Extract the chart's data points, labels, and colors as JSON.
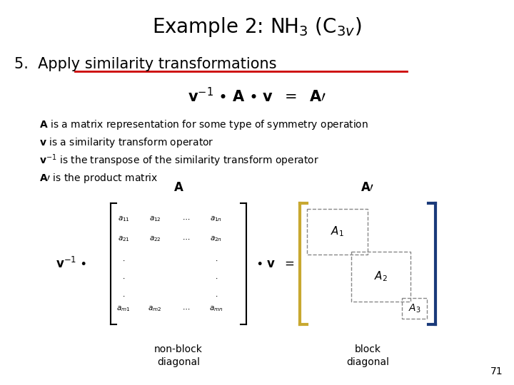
{
  "title": "Example 2: NH$_3$ (C$_{3v}$)",
  "background_color": "#ffffff",
  "title_fontsize": 20,
  "step5_text": "5.  Apply similarity transformations",
  "step5_fontsize": 15,
  "equation_fontsize": 13,
  "bullet_fontsize": 10,
  "underline_color": "#cc0000",
  "page_number": "71",
  "matrix_label_fontsize": 12,
  "sub_label_fontsize": 10,
  "bracket_color_left": "#c8a830",
  "bracket_color_right": "#1a3a7a",
  "bracket_color_matrix": "#000000"
}
